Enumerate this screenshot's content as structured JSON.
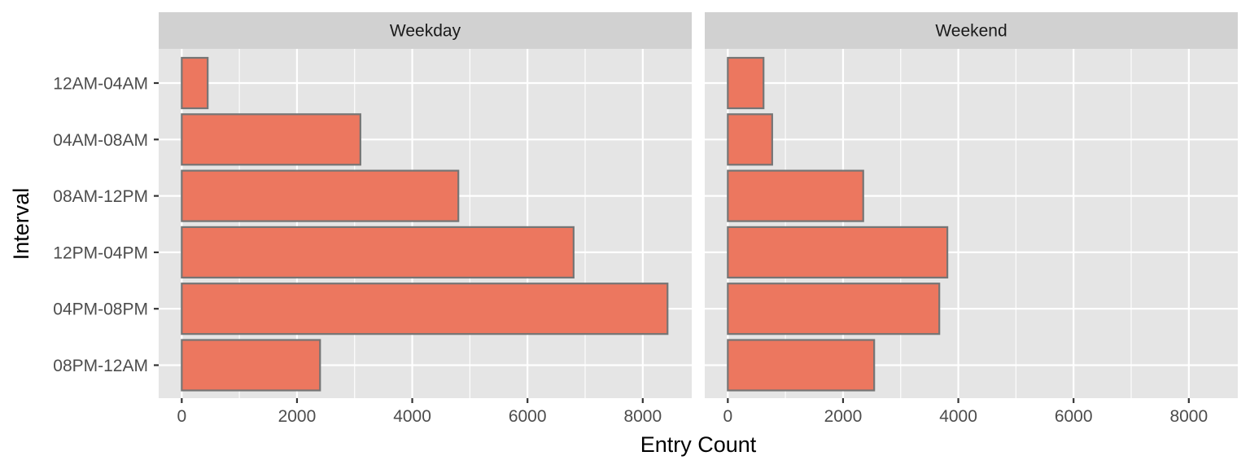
{
  "chart_data": {
    "type": "bar",
    "orientation": "horizontal",
    "xlabel": "Entry Count",
    "ylabel": "Interval",
    "categories": [
      "12AM-04AM",
      "04AM-08AM",
      "08AM-12PM",
      "12PM-04PM",
      "04PM-08PM",
      "08PM-12AM"
    ],
    "xlim": [
      -400,
      8850
    ],
    "xticks": [
      0,
      2000,
      4000,
      6000,
      8000
    ],
    "grid": true,
    "bar_fill": "#EC775F",
    "bar_outline": "#757575",
    "panel_background": "#E5E5E5",
    "strip_background": "#D1D1D1",
    "panels": [
      {
        "label": "Weekday",
        "values": [
          450,
          3100,
          4800,
          6800,
          8430,
          2400
        ]
      },
      {
        "label": "Weekend",
        "values": [
          620,
          770,
          2350,
          3810,
          3670,
          2540
        ]
      }
    ]
  }
}
